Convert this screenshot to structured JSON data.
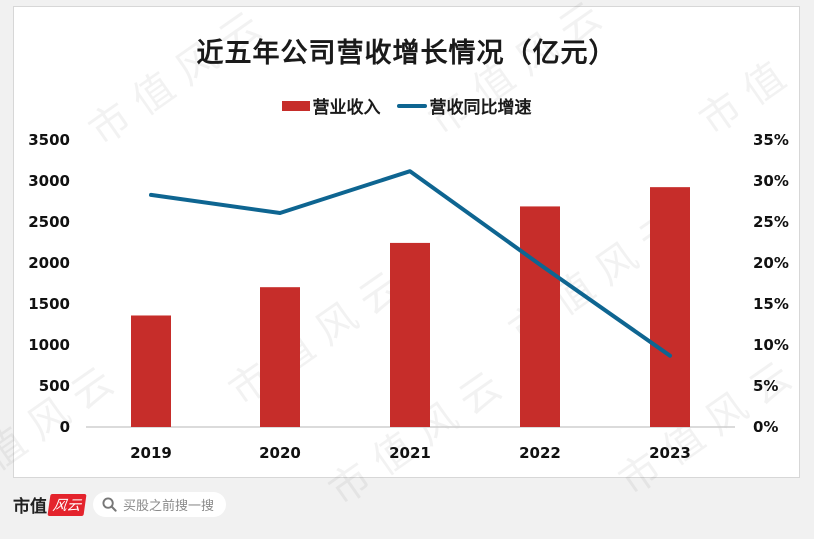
{
  "chart": {
    "title": "近五年公司营收增长情况（亿元）",
    "legend": {
      "bar_label": "营业收入",
      "line_label": "营收同比增速"
    },
    "left_axis_ticks": [
      "3500",
      "3000",
      "2500",
      "2000",
      "1500",
      "1000",
      "500",
      "0"
    ],
    "right_axis_ticks": [
      "35%",
      "30%",
      "25%",
      "20%",
      "15%",
      "10%",
      "5%",
      "0%"
    ],
    "colors": {
      "bar": "#c62d2a",
      "line": "#0e6591"
    }
  },
  "chart_data": {
    "type": "bar",
    "title": "近五年公司营收增长情况（亿元）",
    "categories": [
      "2019",
      "2020",
      "2021",
      "2022",
      "2023"
    ],
    "series": [
      {
        "name": "营业收入",
        "type": "bar",
        "axis": "left",
        "values": [
          1360,
          1705,
          2245,
          2690,
          2925
        ]
      },
      {
        "name": "营收同比增速",
        "type": "line",
        "axis": "right",
        "values": [
          28.3,
          26.1,
          31.2,
          19.8,
          8.7
        ],
        "unit": "%"
      }
    ],
    "xlabel": "",
    "ylabel": "",
    "ylim": [
      0,
      3500
    ],
    "y2lim": [
      0,
      35
    ],
    "grid": false,
    "legend_position": "top"
  },
  "footer": {
    "brand_text": "市值",
    "brand_badge": "风云",
    "search_placeholder": "买股之前搜一搜"
  }
}
